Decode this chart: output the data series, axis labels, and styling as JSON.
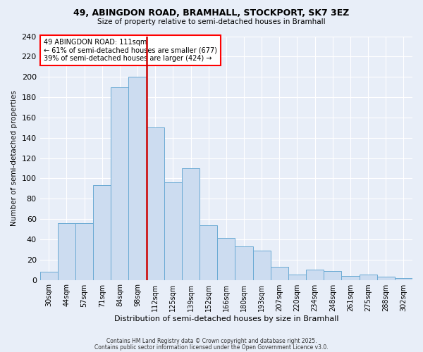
{
  "title": "49, ABINGDON ROAD, BRAMHALL, STOCKPORT, SK7 3EZ",
  "subtitle": "Size of property relative to semi-detached houses in Bramhall",
  "xlabel": "Distribution of semi-detached houses by size in Bramhall",
  "ylabel": "Number of semi-detached properties",
  "annotation_line1": "49 ABINGDON ROAD: 111sqm",
  "annotation_line2": "← 61% of semi-detached houses are smaller (677)",
  "annotation_line3": "39% of semi-detached houses are larger (424) →",
  "bar_labels": [
    "30sqm",
    "44sqm",
    "57sqm",
    "71sqm",
    "84sqm",
    "98sqm",
    "112sqm",
    "125sqm",
    "139sqm",
    "152sqm",
    "166sqm",
    "180sqm",
    "193sqm",
    "207sqm",
    "220sqm",
    "234sqm",
    "248sqm",
    "261sqm",
    "275sqm",
    "288sqm",
    "302sqm"
  ],
  "bar_values": [
    8,
    56,
    56,
    93,
    190,
    200,
    150,
    96,
    110,
    54,
    41,
    33,
    29,
    13,
    5,
    10,
    9,
    4,
    5,
    3,
    2
  ],
  "bar_color": "#ccdcf0",
  "bar_edge_color": "#6aaad4",
  "vline_color": "#cc0000",
  "bg_color": "#e8eef8",
  "plot_bg_color": "#e8eef8",
  "ylim": [
    0,
    240
  ],
  "yticks": [
    0,
    20,
    40,
    60,
    80,
    100,
    120,
    140,
    160,
    180,
    200,
    220,
    240
  ],
  "footer1": "Contains HM Land Registry data © Crown copyright and database right 2025.",
  "footer2": "Contains public sector information licensed under the Open Government Licence v3.0."
}
